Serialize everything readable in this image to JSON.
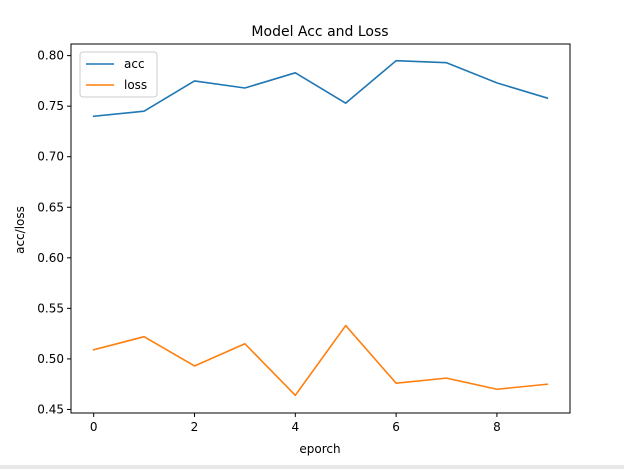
{
  "chart_data": {
    "type": "line",
    "title": "Model Acc and Loss",
    "xlabel": "eporch",
    "ylabel": "acc/loss",
    "x": [
      0,
      1,
      2,
      3,
      4,
      5,
      6,
      7,
      8,
      9
    ],
    "xlim": [
      -0.45,
      9.45
    ],
    "ylim": [
      0.4465,
      0.8115
    ],
    "xticks": [
      0,
      2,
      4,
      6,
      8
    ],
    "yticks": [
      "0.45",
      "0.50",
      "0.55",
      "0.60",
      "0.65",
      "0.70",
      "0.75",
      "0.80"
    ],
    "grid": false,
    "legend_position": "upper-left",
    "series": [
      {
        "name": "acc",
        "color": "#1f77b4",
        "values": [
          0.74,
          0.745,
          0.775,
          0.768,
          0.783,
          0.753,
          0.795,
          0.793,
          0.773,
          0.758
        ]
      },
      {
        "name": "loss",
        "color": "#ff7f0e",
        "values": [
          0.509,
          0.522,
          0.493,
          0.515,
          0.464,
          0.533,
          0.476,
          0.481,
          0.47,
          0.475
        ]
      }
    ]
  }
}
